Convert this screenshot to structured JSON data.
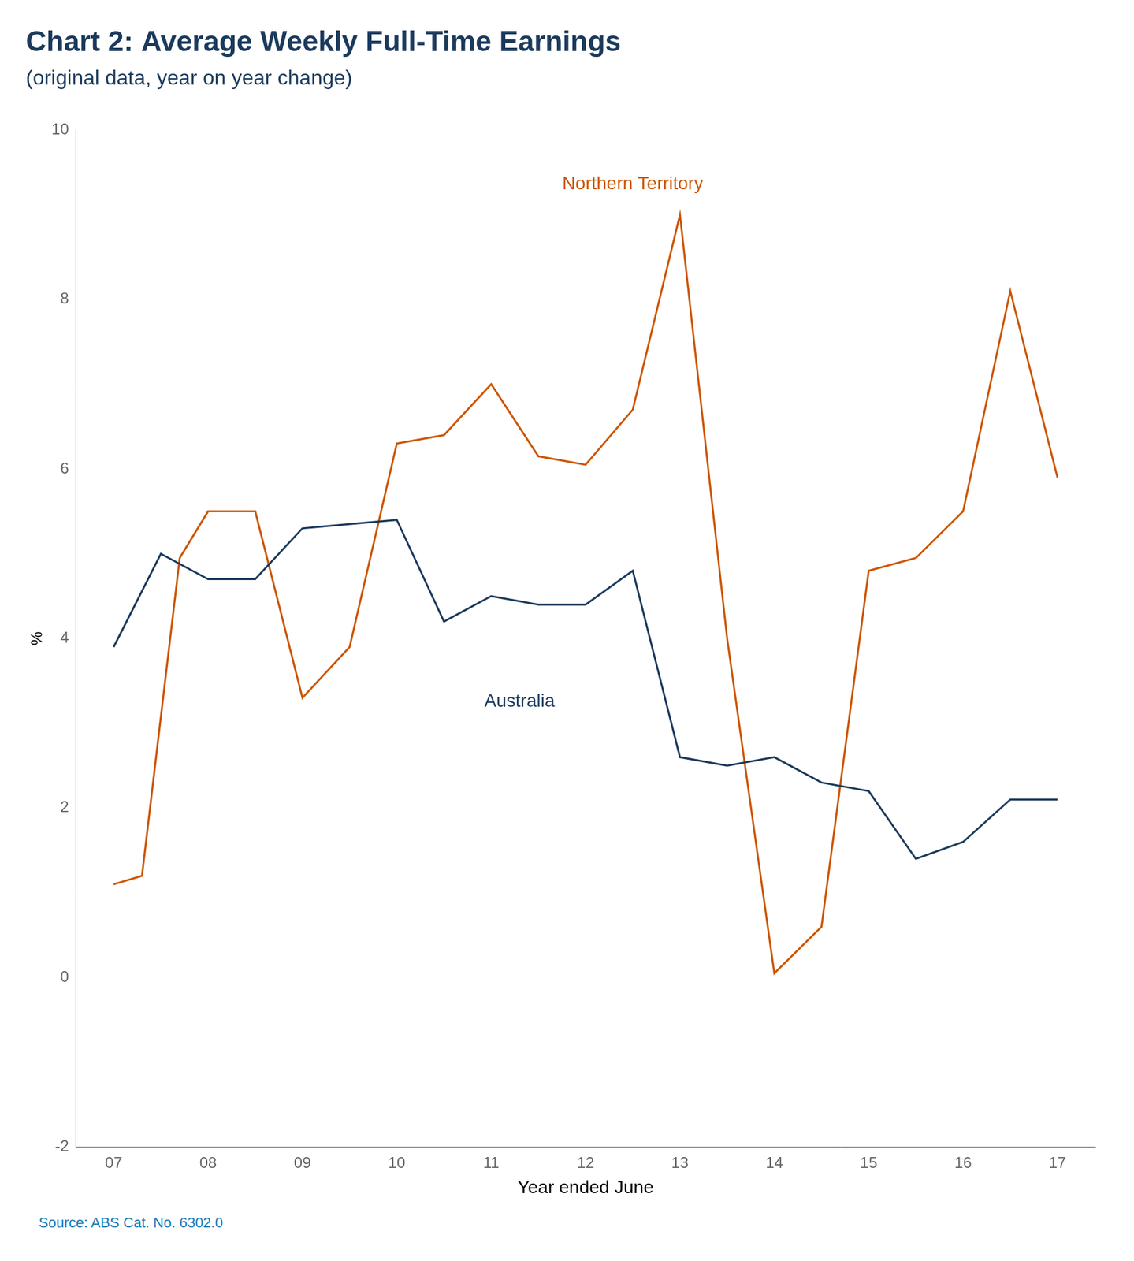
{
  "chart_data": {
    "type": "line",
    "title": "Chart 2: Average Weekly Full-Time Earnings",
    "subtitle": "(original data, year on year change)",
    "xlabel": "Year ended June",
    "ylabel": "%",
    "source": "Source: ABS Cat. No. 6302.0",
    "source_color": "#1a7ab5",
    "title_color": "#1b3a5c",
    "xlim": [
      2006.6,
      2017.4
    ],
    "xticks": [
      {
        "value": 2007,
        "label": "07"
      },
      {
        "value": 2008,
        "label": "08"
      },
      {
        "value": 2009,
        "label": "09"
      },
      {
        "value": 2010,
        "label": "10"
      },
      {
        "value": 2011,
        "label": "11"
      },
      {
        "value": 2012,
        "label": "12"
      },
      {
        "value": 2013,
        "label": "13"
      },
      {
        "value": 2014,
        "label": "14"
      },
      {
        "value": 2015,
        "label": "15"
      },
      {
        "value": 2016,
        "label": "16"
      },
      {
        "value": 2017,
        "label": "17"
      }
    ],
    "ylim": [
      -2,
      10
    ],
    "yticks": [
      -2,
      0,
      2,
      4,
      6,
      8,
      10
    ],
    "grid": false,
    "series": [
      {
        "name": "Australia",
        "color": "#1b3a5c",
        "x": [
          2007,
          2007.5,
          2008,
          2008.5,
          2009,
          2009.5,
          2010,
          2010.5,
          2011,
          2011.5,
          2012,
          2012.5,
          2013,
          2013.5,
          2014,
          2014.5,
          2015,
          2015.5,
          2016,
          2016.5,
          2017
        ],
        "values": [
          3.9,
          5.0,
          4.7,
          4.7,
          5.3,
          5.35,
          5.4,
          4.2,
          4.5,
          4.4,
          4.4,
          4.8,
          2.6,
          2.5,
          2.6,
          2.3,
          2.2,
          1.4,
          1.6,
          2.1,
          2.1
        ]
      },
      {
        "name": "Northern Territory",
        "color": "#cc5500",
        "x": [
          2007,
          2007.3,
          2007.7,
          2008,
          2008.5,
          2009,
          2009.5,
          2010,
          2010.5,
          2011,
          2011.5,
          2012,
          2012.5,
          2013,
          2013.5,
          2014,
          2014.5,
          2015,
          2015.5,
          2016,
          2016.5,
          2017
        ],
        "values": [
          1.1,
          1.2,
          4.95,
          5.5,
          5.5,
          3.3,
          3.9,
          6.3,
          6.4,
          7.0,
          6.15,
          6.05,
          6.7,
          9.0,
          4.0,
          0.05,
          0.6,
          4.8,
          4.95,
          5.5,
          8.1,
          5.9
        ]
      }
    ],
    "annotations": [
      {
        "text": "Australia",
        "x": 2011.3,
        "y": 3.15,
        "color": "#1b3a5c"
      },
      {
        "text": "Northern Territory",
        "x": 2012.5,
        "y": 9.25,
        "color": "#cc5500"
      }
    ]
  }
}
